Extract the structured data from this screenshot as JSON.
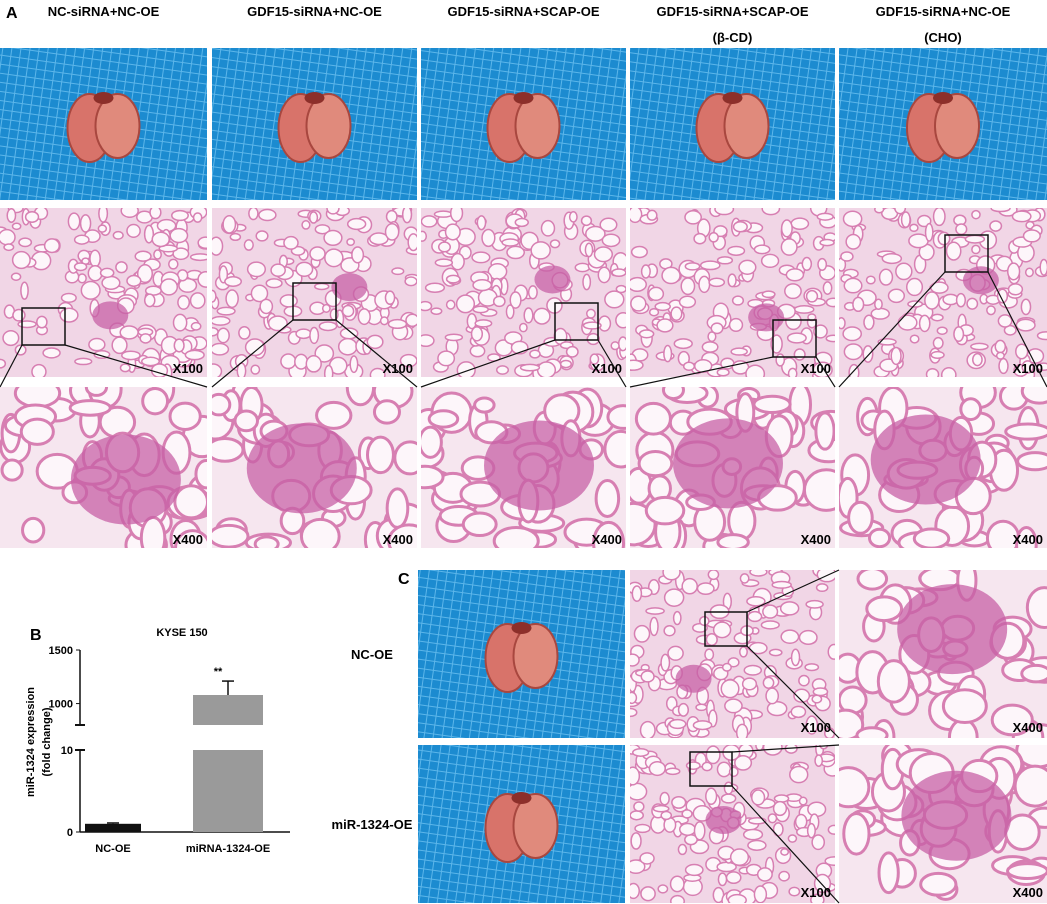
{
  "panel_a": {
    "label": "A",
    "columns": [
      {
        "title": [
          "NC-siRNA+NC-OE"
        ]
      },
      {
        "title": [
          "GDF15-siRNA+NC-OE"
        ]
      },
      {
        "title": [
          "GDF15-siRNA+SCAP-OE"
        ]
      },
      {
        "title": [
          "GDF15-siRNA+SCAP-OE",
          "(β-CD)"
        ]
      },
      {
        "title": [
          "GDF15-siRNA+NC-OE",
          "(CHO)"
        ]
      }
    ],
    "low_mag": [
      "X100",
      "X100",
      "X100",
      "X100",
      "X100"
    ],
    "high_mag": [
      "X400",
      "X400",
      "X400",
      "X400",
      "X400"
    ]
  },
  "panel_b": {
    "label": "B"
  },
  "chart_data": {
    "type": "bar",
    "title": "KYSE 150",
    "ylabel": [
      "miR-1324 expression",
      "(fold change)"
    ],
    "categories": [
      "NC-OE",
      "miRNA-1324-OE"
    ],
    "values": [
      1,
      1080
    ],
    "errors": [
      0.1,
      130
    ],
    "colors": [
      "#111111",
      "#9a9a9a"
    ],
    "annotation": "**",
    "ylim_lower": [
      0,
      10
    ],
    "yticks_lower": [
      0,
      10
    ],
    "ylim_upper": [
      800,
      1500
    ],
    "yticks_upper": [
      1000,
      1500
    ]
  },
  "panel_c": {
    "label": "C",
    "rows": [
      {
        "label": "NC-OE",
        "low_mag": "X100",
        "high_mag": "X400"
      },
      {
        "label": "miR-1324-OE",
        "low_mag": "X100",
        "high_mag": "X400"
      }
    ]
  }
}
